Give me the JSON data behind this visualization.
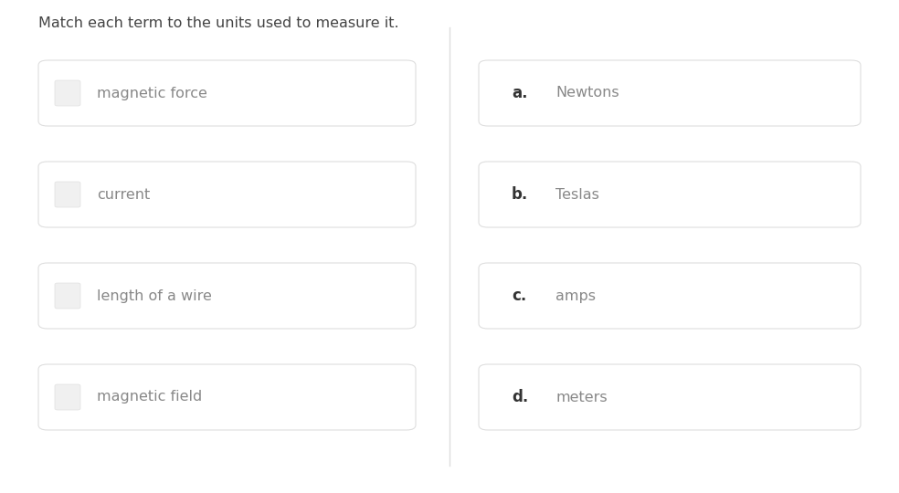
{
  "title": "Match each term to the units used to measure it.",
  "title_fontsize": 11.5,
  "title_color": "#444444",
  "background_color": "#ffffff",
  "card_bg": "#ffffff",
  "card_border": "#dedede",
  "left_items": [
    "magnetic force",
    "current",
    "length of a wire",
    "magnetic field"
  ],
  "right_labels": [
    "a.",
    "b.",
    "c.",
    "d."
  ],
  "right_items": [
    "Newtons",
    "Teslas",
    "amps",
    "meters"
  ],
  "label_color": "#333333",
  "label_bold_fontsize": 12,
  "item_fontsize": 11.5,
  "item_color": "#888888",
  "square_color": "#f0f0f0",
  "square_border": "#e0e0e0",
  "divider_color": "#dddddd",
  "fig_width": 9.84,
  "fig_height": 5.4,
  "dpi": 100
}
